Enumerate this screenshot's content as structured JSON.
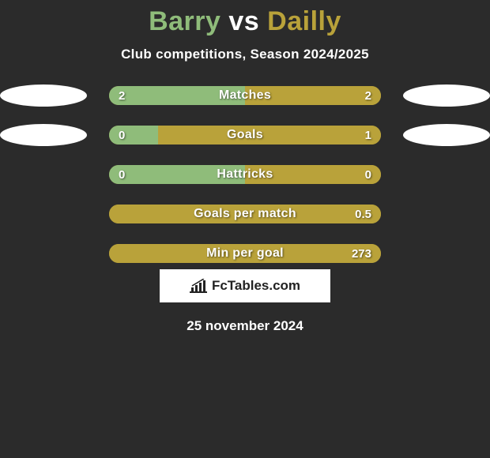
{
  "title": {
    "player1": "Barry",
    "vs": "vs",
    "player2": "Dailly"
  },
  "title_colors": {
    "player1": "#8fbc7a",
    "vs": "#ffffff",
    "player2": "#b9a23a"
  },
  "subtitle": "Club competitions, Season 2024/2025",
  "background_color": "#2b2b2b",
  "bar_chart": {
    "track_width": 344,
    "track_height": 24,
    "left_color": "#8fbc7a",
    "right_color": "#b9a23a",
    "text_color": "#ffffff",
    "rows": [
      {
        "label": "Matches",
        "left": "2",
        "right": "2",
        "left_pct": 50,
        "right_pct": 50,
        "show_ellipses": true
      },
      {
        "label": "Goals",
        "left": "0",
        "right": "1",
        "left_pct": 18,
        "right_pct": 82,
        "show_ellipses": true
      },
      {
        "label": "Hattricks",
        "left": "0",
        "right": "0",
        "left_pct": 50,
        "right_pct": 50,
        "show_ellipses": false
      },
      {
        "label": "Goals per match",
        "left": "",
        "right": "0.5",
        "left_pct": 0,
        "right_pct": 100,
        "show_ellipses": false
      },
      {
        "label": "Min per goal",
        "left": "",
        "right": "273",
        "left_pct": 0,
        "right_pct": 100,
        "show_ellipses": false
      }
    ]
  },
  "brand": {
    "text": "FcTables.com"
  },
  "date": "25 november 2024"
}
